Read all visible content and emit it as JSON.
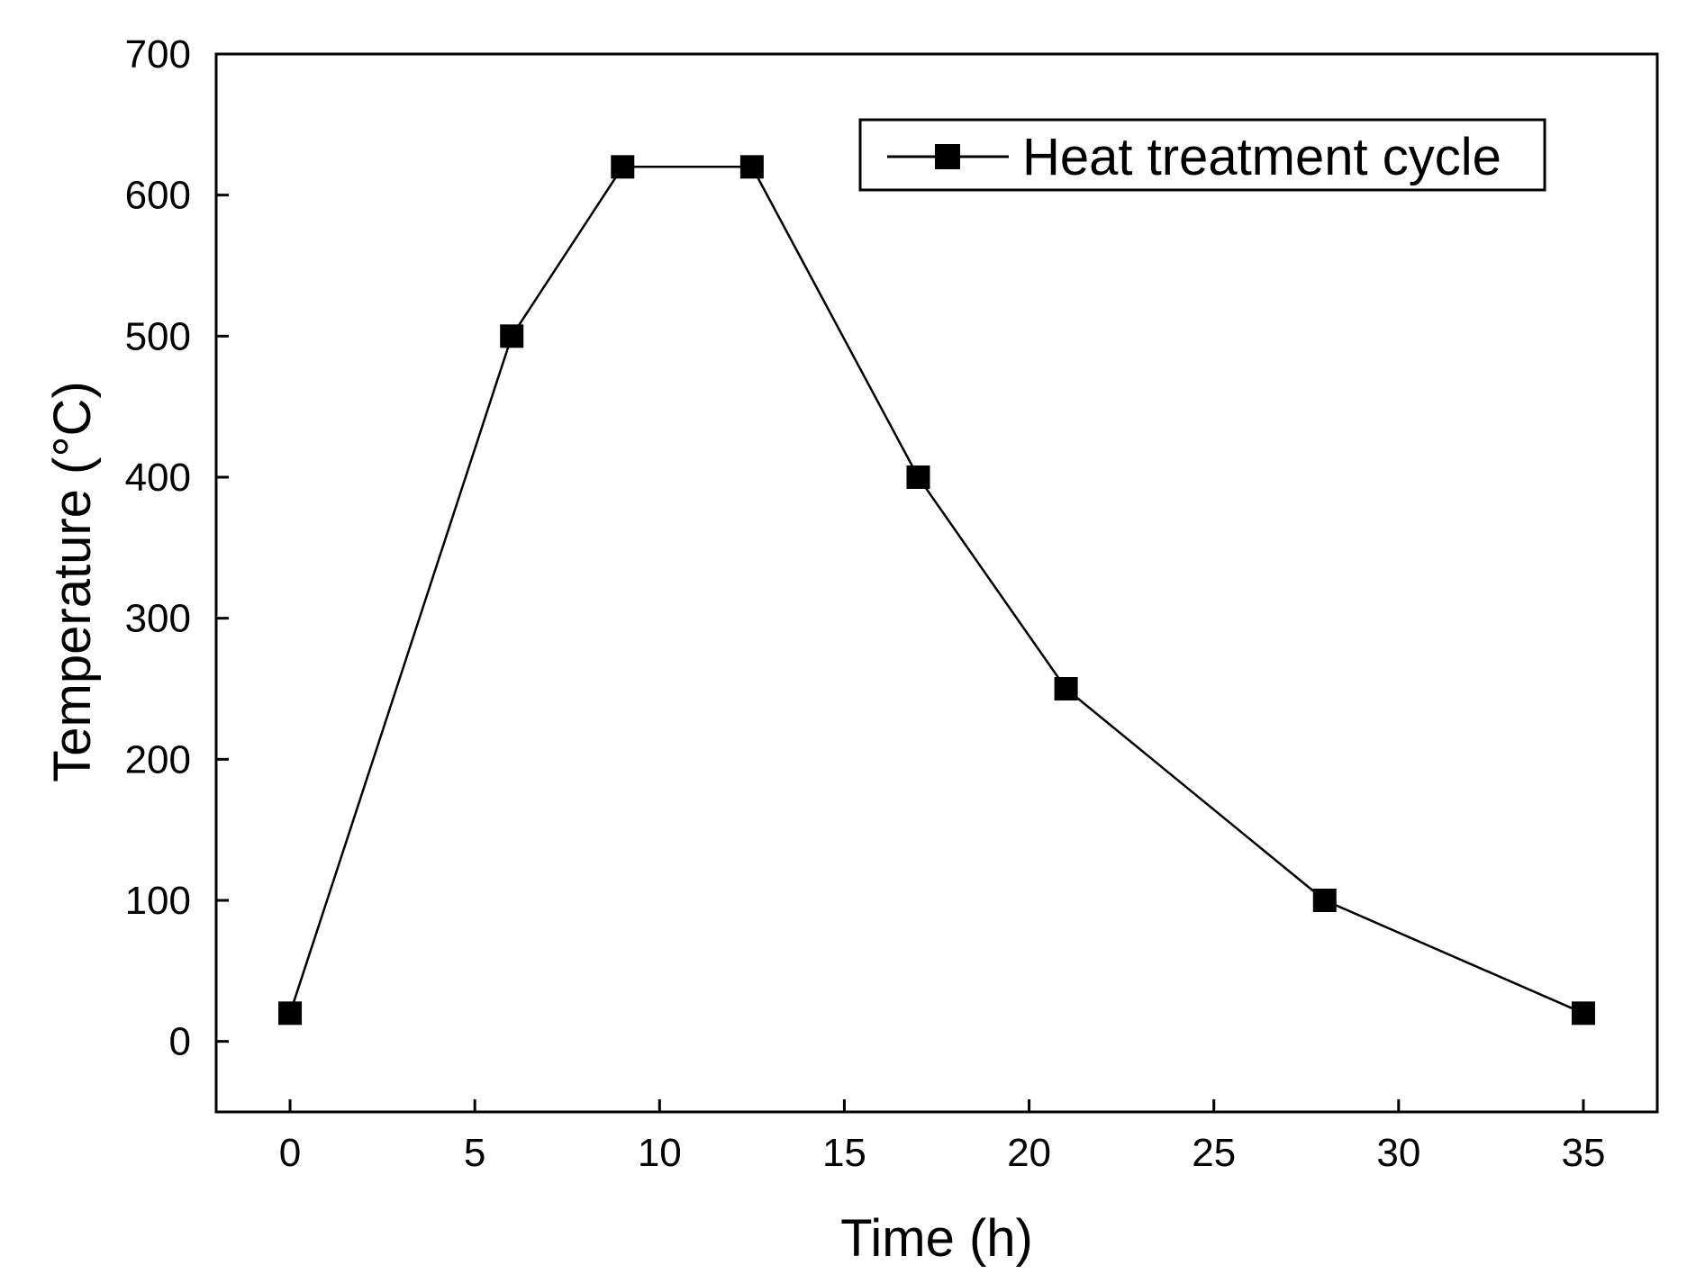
{
  "chart_data": {
    "type": "line",
    "title": "",
    "xlabel": "Time (h)",
    "ylabel": "Temperature (°C)",
    "xlim": [
      -2,
      37
    ],
    "ylim": [
      -50,
      700
    ],
    "xticks": [
      0,
      5,
      10,
      15,
      20,
      25,
      30,
      35
    ],
    "yticks": [
      0,
      100,
      200,
      300,
      400,
      500,
      600,
      700
    ],
    "xtick_labels": [
      "0",
      "5",
      "10",
      "15",
      "20",
      "25",
      "30",
      "35"
    ],
    "ytick_labels": [
      "0",
      "100",
      "200",
      "300",
      "400",
      "500",
      "600",
      "700"
    ],
    "grid": false,
    "legend_position": "top-right",
    "series": [
      {
        "name": "Heat treatment cycle",
        "marker": "square",
        "color": "#000000",
        "x": [
          0,
          6,
          9,
          12.5,
          17,
          21,
          28,
          35
        ],
        "y": [
          20,
          500,
          620,
          620,
          400,
          250,
          100,
          20
        ]
      }
    ]
  }
}
